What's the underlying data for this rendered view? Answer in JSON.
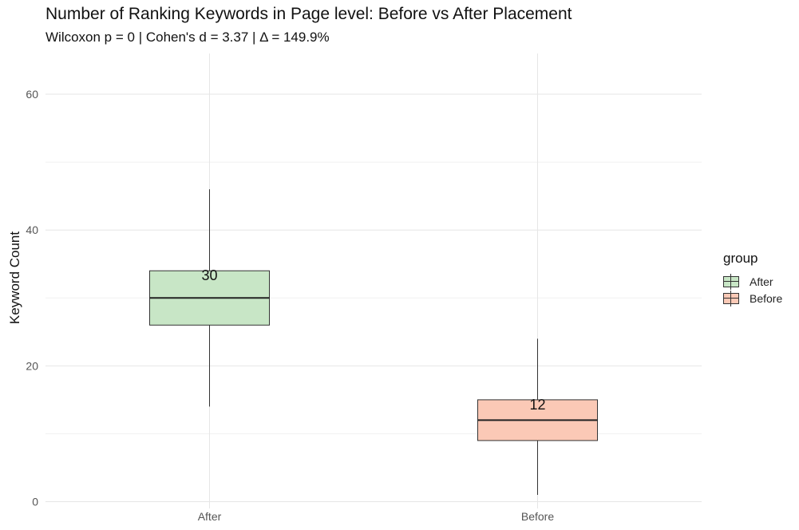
{
  "chart_data": {
    "type": "box",
    "title": "Number of Ranking Keywords in Page level: Before vs After Placement",
    "subtitle": "Wilcoxon p = 0 | Cohen's d = 3.37 | Δ = 149.9%",
    "xlabel": "",
    "ylabel": "Keyword Count",
    "ylim": [
      -1,
      66
    ],
    "yticks": [
      0,
      20,
      40,
      60
    ],
    "grid": true,
    "legend": {
      "title": "group",
      "placement": "right",
      "entries": [
        "After",
        "Before"
      ]
    },
    "categories": [
      "After",
      "Before"
    ],
    "series": [
      {
        "name": "After",
        "color": "#c8e6c6",
        "min": 14,
        "q1": 26,
        "median": 30,
        "q3": 34,
        "max": 46,
        "label": "30"
      },
      {
        "name": "Before",
        "color": "#fbc9b6",
        "min": 1,
        "q1": 9,
        "median": 12,
        "q3": 15,
        "max": 24,
        "label": "12"
      }
    ]
  }
}
